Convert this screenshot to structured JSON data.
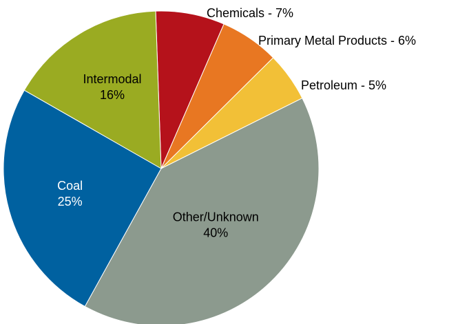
{
  "chart_data": {
    "type": "pie",
    "categories": [
      "Chemicals",
      "Primary Metal Products",
      "Petroleum",
      "Other/Unknown",
      "Coal",
      "Intermodal"
    ],
    "values": [
      7,
      6,
      5,
      40,
      25,
      16
    ],
    "value_labels": [
      "Chemicals - 7%",
      "Primary Metal Products - 6%",
      "Petroleum - 5%",
      "40%",
      "25%",
      "16%"
    ],
    "colors": [
      "#b5121b",
      "#e87722",
      "#f2c037",
      "#8c9a8e",
      "#0061a0",
      "#9aab22"
    ]
  }
}
